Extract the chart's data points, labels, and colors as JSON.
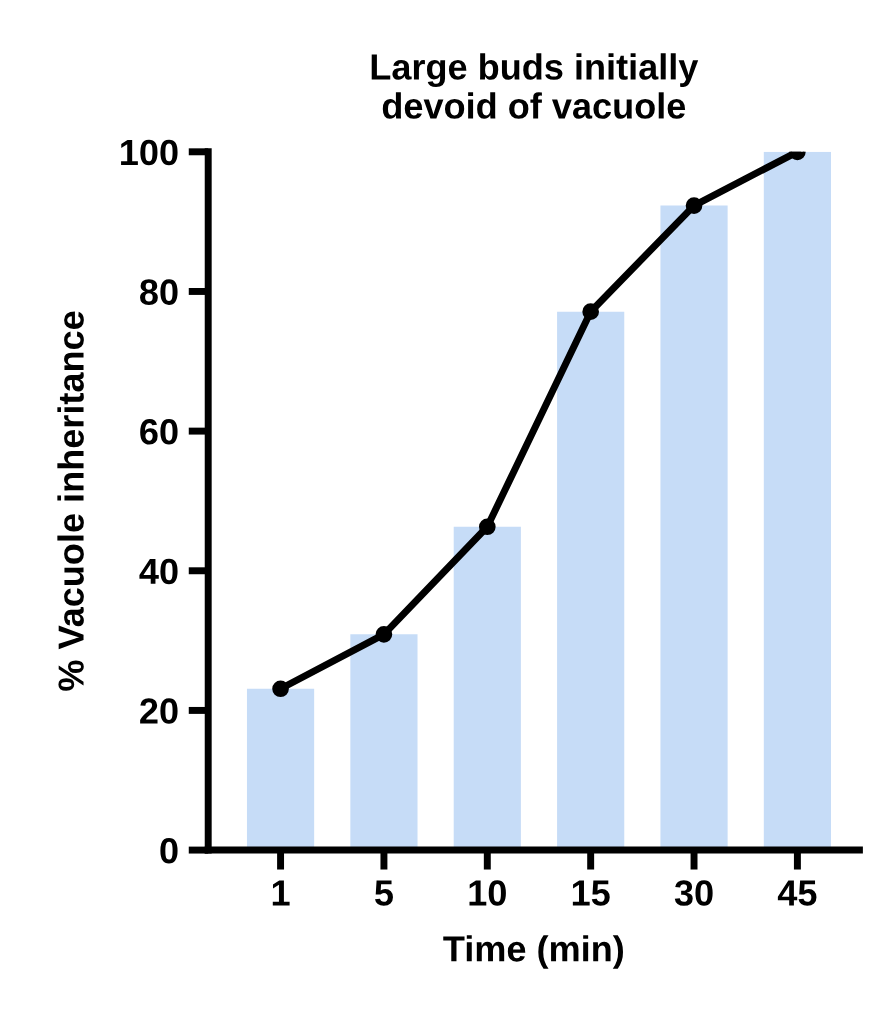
{
  "chart_data": {
    "type": "bar",
    "title": "Large buds initially\ndevoid of vacuole",
    "xlabel": "Time (min)",
    "ylabel": "% Vacuole inheritance",
    "categories": [
      "1",
      "5",
      "10",
      "15",
      "30",
      "45"
    ],
    "series": [
      {
        "color": "#c6dcf7",
        "values": [
          23.1,
          30.9,
          46.3,
          77.1,
          92.3,
          100
        ]
      },
      {
        "type": "line",
        "color": "#000000",
        "values": [
          23.1,
          30.9,
          46.3,
          77.1,
          92.3,
          100
        ],
        "marker": "circle",
        "line_style": "solid"
      }
    ],
    "ylim": [
      0,
      100
    ],
    "yticks": [
      0,
      20,
      40,
      60,
      80,
      100
    ],
    "grid": false,
    "legend": false
  }
}
